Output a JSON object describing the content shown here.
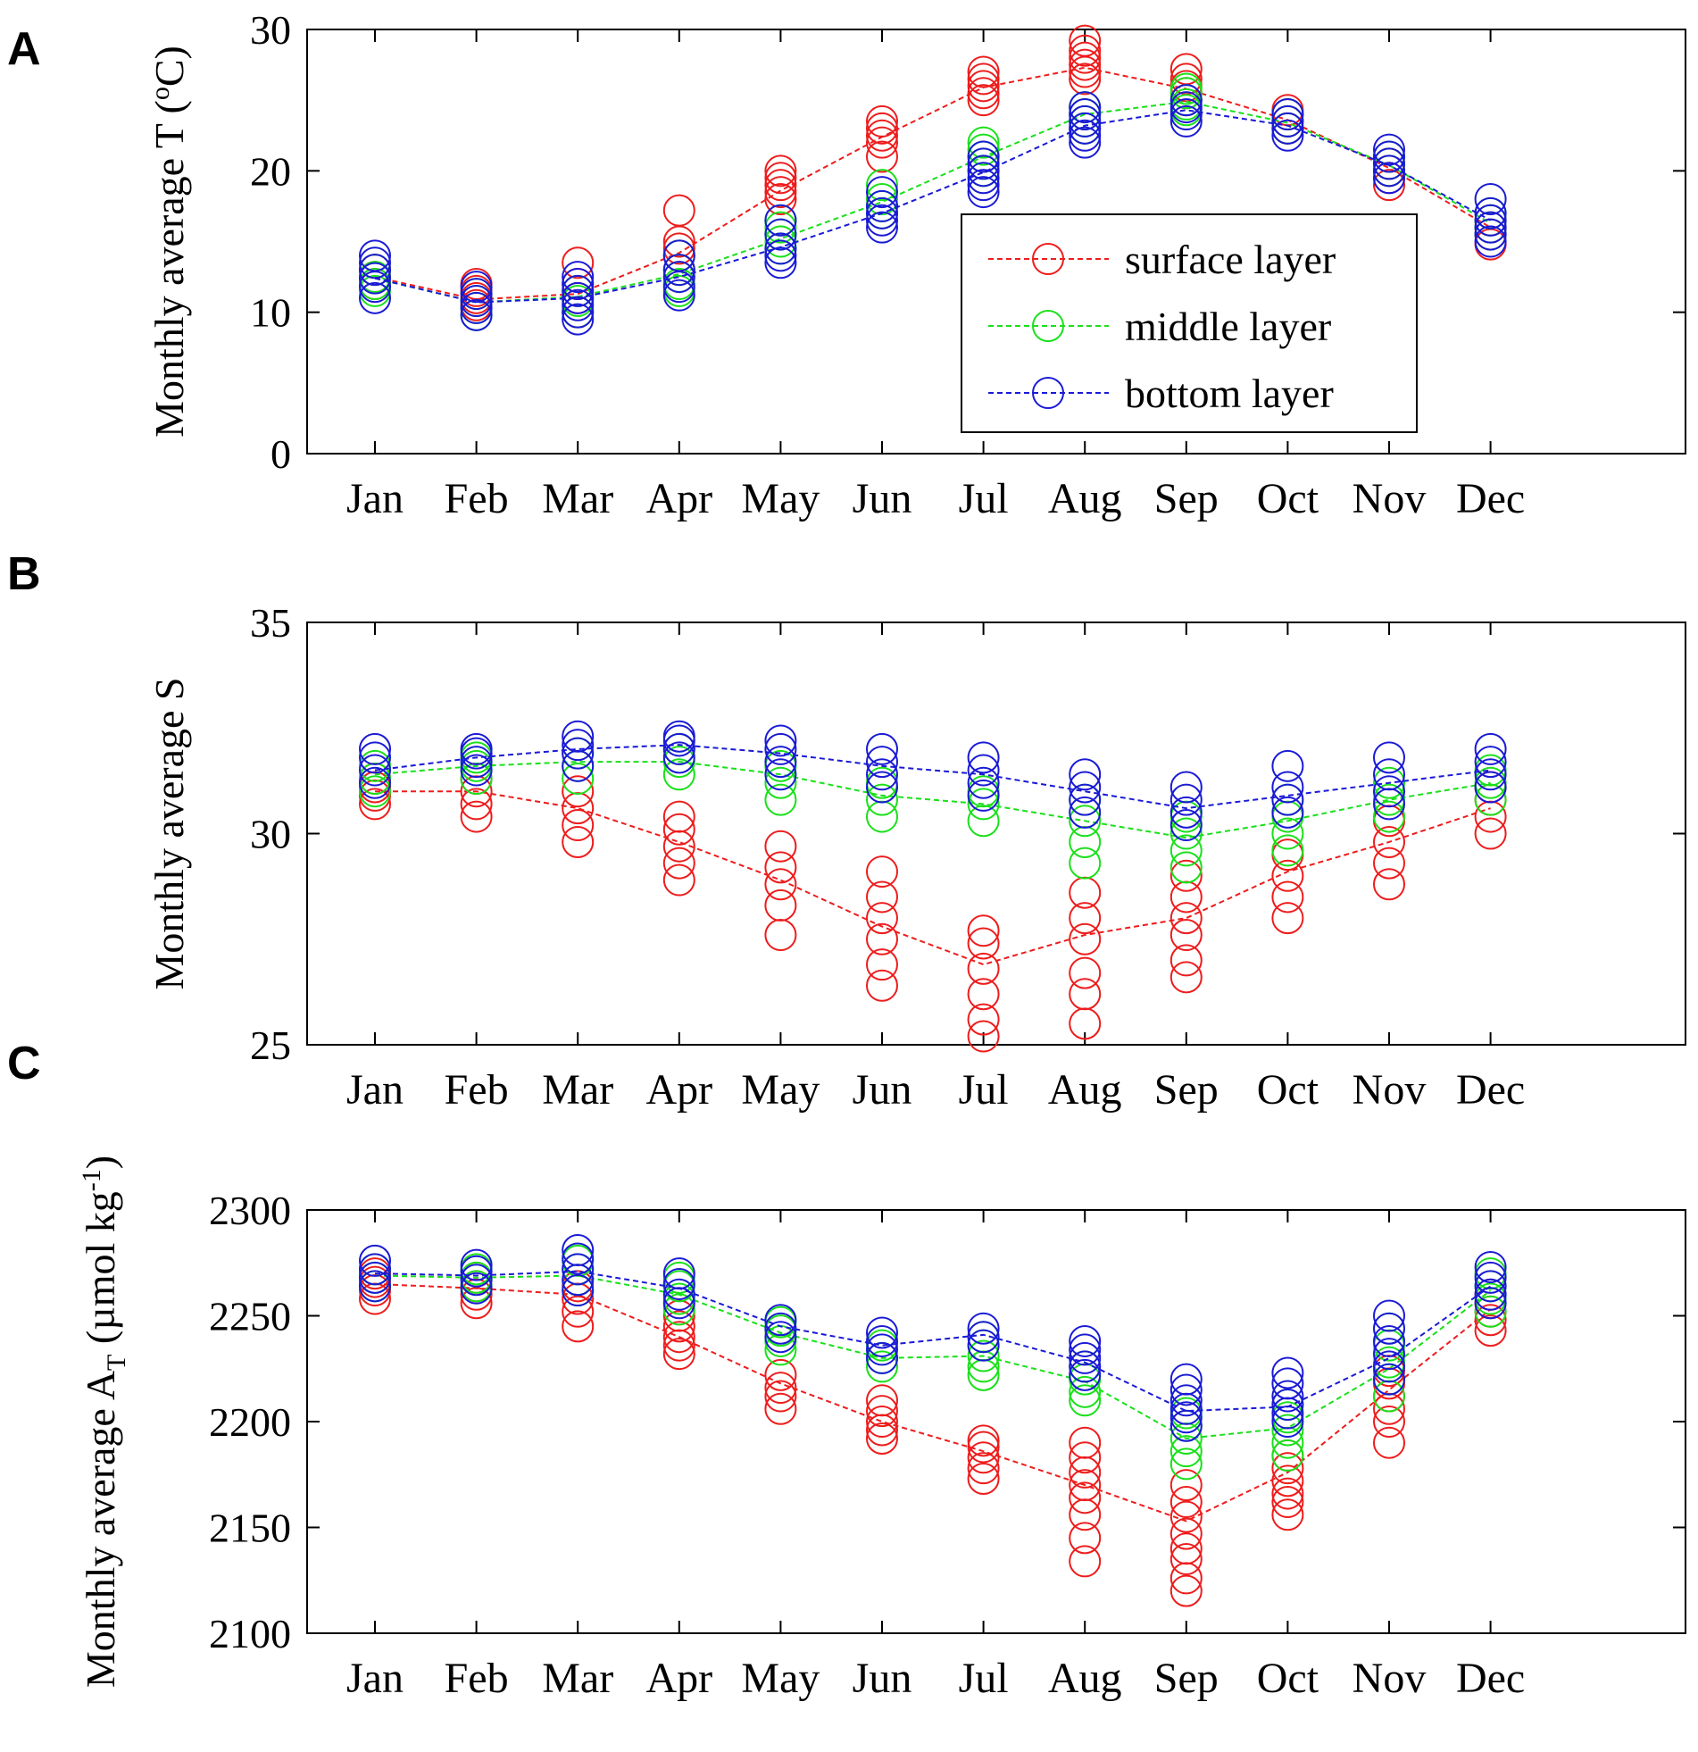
{
  "figure": {
    "colors": {
      "surface": "#ee1c1c",
      "middle": "#19e019",
      "bottom": "#1a1ad6",
      "axis": "#000000"
    },
    "legend": [
      {
        "key": "surface",
        "label": "surface layer"
      },
      {
        "key": "middle",
        "label": "middle layer"
      },
      {
        "key": "bottom",
        "label": "bottom layer"
      }
    ]
  },
  "chart_data": [
    {
      "panel": "A",
      "type": "line",
      "xlabel": "",
      "ylabel_parts": [
        {
          "t": "Monthly average T ("
        },
        {
          "t": "o",
          "sup": true
        },
        {
          "t": "C)"
        }
      ],
      "ylim": [
        0,
        30
      ],
      "yticks": [
        "0",
        "10",
        "20",
        "30"
      ],
      "categories": [
        "Jan",
        "Feb",
        "Mar",
        "Apr",
        "May",
        "Jun",
        "Jul",
        "Aug",
        "Sep",
        "Oct",
        "Nov",
        "Dec"
      ],
      "legend_position": "center-right",
      "series": [
        {
          "key": "surface",
          "name": "surface layer",
          "values": [
            12.5,
            10.9,
            11.3,
            14.2,
            18.6,
            22.4,
            25.9,
            27.3,
            25.8,
            23.6,
            20.2,
            16.0
          ],
          "obs": [
            [
              12.0,
              12.5,
              13.0
            ],
            [
              10.5,
              11.0,
              11.5,
              12.0
            ],
            [
              10.0,
              11.0,
              12.0,
              13.5
            ],
            [
              13.0,
              14.0,
              14.5,
              15.0,
              17.2
            ],
            [
              18.0,
              18.5,
              19.0,
              19.5,
              20.0
            ],
            [
              21.0,
              22.0,
              22.5,
              23.0,
              23.5
            ],
            [
              25.0,
              25.5,
              26.0,
              26.5,
              27.0
            ],
            [
              26.5,
              27.0,
              27.5,
              28.0,
              28.5,
              29.2
            ],
            [
              25.0,
              25.5,
              26.0,
              26.5,
              27.2
            ],
            [
              23.0,
              23.5,
              24.0,
              24.3
            ],
            [
              19.0,
              19.5,
              20.0,
              20.5
            ],
            [
              14.8,
              15.5,
              16.0,
              16.5
            ]
          ]
        },
        {
          "key": "middle",
          "name": "middle layer",
          "values": [
            12.4,
            10.7,
            11.1,
            12.7,
            15.2,
            17.8,
            21.0,
            24.0,
            24.9,
            23.4,
            20.4,
            16.3
          ],
          "obs": [
            [
              11.5,
              12.0,
              12.5,
              13.0
            ],
            [
              9.8,
              10.3,
              10.8,
              11.3
            ],
            [
              10.0,
              10.8,
              11.5
            ],
            [
              11.5,
              12.0,
              12.5,
              13.0,
              14.0
            ],
            [
              14.5,
              15.0,
              15.5,
              16.0,
              16.5
            ],
            [
              17.0,
              17.5,
              18.0,
              19.0
            ],
            [
              20.0,
              20.5,
              21.0,
              21.5,
              22.0
            ],
            [
              23.0,
              23.5,
              24.0,
              24.5
            ],
            [
              24.3,
              24.7,
              25.0,
              25.5,
              25.8
            ],
            [
              23.0,
              23.5,
              24.0
            ],
            [
              20.0,
              20.5,
              21.0
            ],
            [
              15.5,
              16.0,
              16.5,
              17.0
            ]
          ]
        },
        {
          "key": "bottom",
          "name": "bottom layer",
          "values": [
            12.4,
            10.7,
            11.0,
            12.5,
            14.6,
            17.0,
            19.9,
            23.2,
            24.3,
            23.2,
            20.4,
            16.5
          ],
          "obs": [
            [
              11.0,
              11.8,
              12.4,
              13.0,
              13.5,
              14.0
            ],
            [
              9.8,
              10.3,
              10.8,
              11.3,
              11.8
            ],
            [
              9.5,
              10.0,
              10.5,
              11.0,
              11.5,
              12.0,
              12.5
            ],
            [
              11.2,
              11.8,
              12.5,
              13.0,
              14.0
            ],
            [
              13.5,
              14.0,
              14.5,
              15.5,
              16.5
            ],
            [
              16.0,
              16.5,
              17.0,
              17.5,
              18.5
            ],
            [
              18.5,
              19.0,
              19.5,
              20.0,
              20.5,
              21.0
            ],
            [
              22.0,
              22.5,
              23.0,
              23.5,
              24.0,
              24.5
            ],
            [
              23.5,
              24.0,
              24.5,
              25.0
            ],
            [
              22.5,
              23.0,
              23.5,
              24.0
            ],
            [
              19.5,
              20.0,
              20.5,
              21.0,
              21.5
            ],
            [
              15.0,
              15.5,
              16.0,
              16.5,
              17.0,
              18.0
            ]
          ]
        }
      ]
    },
    {
      "panel": "B",
      "type": "line",
      "xlabel": "",
      "ylabel_parts": [
        {
          "t": "Monthly average S"
        }
      ],
      "ylim": [
        25,
        35
      ],
      "yticks": [
        "25",
        "30",
        "35"
      ],
      "categories": [
        "Jan",
        "Feb",
        "Mar",
        "Apr",
        "May",
        "Jun",
        "Jul",
        "Aug",
        "Sep",
        "Oct",
        "Nov",
        "Dec"
      ],
      "series": [
        {
          "key": "surface",
          "name": "surface layer",
          "values": [
            31.0,
            31.0,
            30.6,
            29.8,
            28.9,
            27.8,
            26.9,
            27.6,
            28.0,
            29.1,
            29.8,
            30.6
          ],
          "obs": [
            [
              30.7,
              30.9,
              31.1,
              31.3
            ],
            [
              30.4,
              30.7,
              31.0,
              31.3
            ],
            [
              29.8,
              30.2,
              30.6,
              31.0
            ],
            [
              28.9,
              29.3,
              29.7,
              30.1,
              30.4
            ],
            [
              27.6,
              28.3,
              28.8,
              29.2,
              29.7
            ],
            [
              26.4,
              26.9,
              27.5,
              28.0,
              28.5,
              29.1
            ],
            [
              25.2,
              25.6,
              26.2,
              26.8,
              27.4,
              27.7
            ],
            [
              25.5,
              26.2,
              26.7,
              27.5,
              28.0,
              28.6
            ],
            [
              26.6,
              27.0,
              27.6,
              28.0,
              28.5,
              29.0
            ],
            [
              28.0,
              28.5,
              29.0,
              29.5
            ],
            [
              28.8,
              29.3,
              29.8,
              30.3
            ],
            [
              30.0,
              30.4,
              30.8,
              31.1
            ]
          ]
        },
        {
          "key": "middle",
          "name": "middle layer",
          "values": [
            31.4,
            31.6,
            31.7,
            31.7,
            31.4,
            30.9,
            30.7,
            30.3,
            29.9,
            30.3,
            30.8,
            31.2
          ],
          "obs": [
            [
              31.0,
              31.3,
              31.6
            ],
            [
              31.3,
              31.6,
              31.8
            ],
            [
              31.3,
              31.6,
              31.9
            ],
            [
              31.4,
              31.7,
              32.0
            ],
            [
              30.8,
              31.2,
              31.6
            ],
            [
              30.4,
              30.8,
              31.2
            ],
            [
              30.3,
              30.7,
              31.0
            ],
            [
              29.3,
              29.8,
              30.3,
              30.8
            ],
            [
              29.2,
              29.6,
              30.0,
              30.4
            ],
            [
              29.6,
              30.0,
              30.4,
              30.8
            ],
            [
              30.4,
              30.8,
              31.2
            ],
            [
              30.8,
              31.2,
              31.5
            ]
          ]
        },
        {
          "key": "bottom",
          "name": "bottom layer",
          "values": [
            31.5,
            31.8,
            32.0,
            32.1,
            31.9,
            31.6,
            31.4,
            31.0,
            30.6,
            30.9,
            31.2,
            31.5
          ],
          "obs": [
            [
              31.2,
              31.5,
              31.8,
              32.0
            ],
            [
              31.5,
              31.7,
              31.9,
              32.0
            ],
            [
              31.6,
              31.9,
              32.1,
              32.3
            ],
            [
              31.8,
              32.0,
              32.2,
              32.3
            ],
            [
              31.4,
              31.7,
              32.0,
              32.2
            ],
            [
              31.1,
              31.4,
              31.7,
              32.0
            ],
            [
              30.9,
              31.2,
              31.5,
              31.8
            ],
            [
              30.5,
              30.8,
              31.1,
              31.4
            ],
            [
              30.2,
              30.5,
              30.8,
              31.1
            ],
            [
              30.5,
              30.8,
              31.1,
              31.6
            ],
            [
              30.7,
              31.0,
              31.4,
              31.8
            ],
            [
              31.1,
              31.4,
              31.7,
              32.0
            ]
          ]
        }
      ]
    },
    {
      "panel": "C",
      "type": "line",
      "xlabel": "",
      "ylabel_parts": [
        {
          "t": "Monthly average A"
        },
        {
          "t": "T",
          "sub": true
        },
        {
          "t": " (µmol kg"
        },
        {
          "t": "-1",
          "sup": true
        },
        {
          "t": ")"
        }
      ],
      "ylim": [
        2100,
        2300
      ],
      "yticks": [
        "2100",
        "2150",
        "2200",
        "2250",
        "2300"
      ],
      "categories": [
        "Jan",
        "Feb",
        "Mar",
        "Apr",
        "May",
        "Jun",
        "Jul",
        "Aug",
        "Sep",
        "Oct",
        "Nov",
        "Dec"
      ],
      "series": [
        {
          "key": "surface",
          "name": "surface layer",
          "values": [
            2265,
            2263,
            2260,
            2240,
            2218,
            2200,
            2186,
            2170,
            2153,
            2176,
            2215,
            2253
          ],
          "obs": [
            [
              2258,
              2262,
              2266,
              2270
            ],
            [
              2256,
              2260,
              2264,
              2268
            ],
            [
              2245,
              2252,
              2258,
              2264
            ],
            [
              2232,
              2236,
              2240,
              2245,
              2250
            ],
            [
              2206,
              2212,
              2216,
              2222
            ],
            [
              2192,
              2196,
              2200,
              2205,
              2210
            ],
            [
              2173,
              2178,
              2183,
              2188,
              2191
            ],
            [
              2134,
              2145,
              2156,
              2164,
              2170,
              2176,
              2183,
              2190
            ],
            [
              2120,
              2126,
              2135,
              2140,
              2147,
              2155,
              2162,
              2170
            ],
            [
              2156,
              2162,
              2166,
              2172,
              2178,
              2184
            ],
            [
              2190,
              2200,
              2206,
              2212,
              2218,
              2224
            ],
            [
              2243,
              2248,
              2252,
              2256,
              2260
            ]
          ]
        },
        {
          "key": "middle",
          "name": "middle layer",
          "values": [
            2269,
            2268,
            2269,
            2260,
            2242,
            2230,
            2231,
            2219,
            2192,
            2197,
            2225,
            2262
          ],
          "obs": [
            [
              2264,
              2268,
              2272
            ],
            [
              2264,
              2268,
              2272
            ],
            [
              2262,
              2267,
              2272,
              2276
            ],
            [
              2253,
              2258,
              2264,
              2268
            ],
            [
              2234,
              2238,
              2243,
              2247
            ],
            [
              2226,
              2230,
              2236
            ],
            [
              2222,
              2226,
              2231,
              2236,
              2240
            ],
            [
              2210,
              2214,
              2220,
              2226
            ],
            [
              2180,
              2186,
              2192,
              2198,
              2204
            ],
            [
              2184,
              2190,
              2196,
              2202,
              2208
            ],
            [
              2212,
              2220,
              2228,
              2236,
              2244
            ],
            [
              2252,
              2258,
              2264,
              2270
            ]
          ]
        },
        {
          "key": "bottom",
          "name": "bottom layer",
          "values": [
            2270,
            2269,
            2271,
            2263,
            2245,
            2236,
            2241,
            2228,
            2205,
            2207,
            2230,
            2264
          ],
          "obs": [
            [
              2264,
              2268,
              2272,
              2276
            ],
            [
              2263,
              2267,
              2271,
              2274
            ],
            [
              2262,
              2267,
              2272,
              2277,
              2281
            ],
            [
              2256,
              2260,
              2265,
              2270
            ],
            [
              2240,
              2244,
              2248
            ],
            [
              2230,
              2234,
              2238,
              2242
            ],
            [
              2236,
              2240,
              2244
            ],
            [
              2222,
              2226,
              2230,
              2234,
              2238
            ],
            [
              2198,
              2202,
              2206,
              2210,
              2215,
              2220
            ],
            [
              2200,
              2204,
              2208,
              2212,
              2218,
              2223
            ],
            [
              2220,
              2226,
              2232,
              2238,
              2244,
              2250
            ],
            [
              2256,
              2260,
              2264,
              2268,
              2273
            ]
          ]
        }
      ]
    }
  ]
}
